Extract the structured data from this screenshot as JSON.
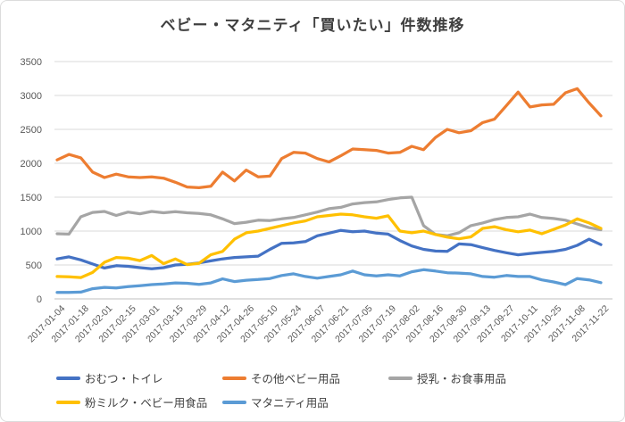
{
  "title": "ベビー・マタニティ「買いたい」件数推移",
  "colors": {
    "background": "#FFFFFF",
    "border": "#DCDCDC",
    "gridline": "#D9D9D9",
    "axis_line": "#BFBFBF",
    "tick_label": "#595959",
    "title_text": "#3F3F3F",
    "legend_text": "#404040"
  },
  "chart_data": {
    "type": "line",
    "title": "ベビー・マタニティ「買いたい」件数推移",
    "xlabel": "",
    "ylabel": "",
    "ylim": [
      0,
      3500
    ],
    "y_ticks": [
      0,
      500,
      1000,
      1500,
      2000,
      2500,
      3000,
      3500
    ],
    "grid": true,
    "legend_position": "bottom",
    "x_tick_every": 2,
    "x": [
      "2017-01-04",
      "2017-01-11",
      "2017-01-18",
      "2017-01-25",
      "2017-02-01",
      "2017-02-08",
      "2017-02-15",
      "2017-02-22",
      "2017-03-01",
      "2017-03-08",
      "2017-03-15",
      "2017-03-22",
      "2017-03-29",
      "2017-04-05",
      "2017-04-12",
      "2017-04-19",
      "2017-04-26",
      "2017-05-03",
      "2017-05-10",
      "2017-05-17",
      "2017-05-24",
      "2017-05-31",
      "2017-06-07",
      "2017-06-14",
      "2017-06-21",
      "2017-06-28",
      "2017-07-05",
      "2017-07-12",
      "2017-07-19",
      "2017-07-26",
      "2017-08-02",
      "2017-08-09",
      "2017-08-16",
      "2017-08-23",
      "2017-08-30",
      "2017-09-06",
      "2017-09-13",
      "2017-09-20",
      "2017-09-27",
      "2017-10-04",
      "2017-10-11",
      "2017-10-18",
      "2017-10-25",
      "2017-11-01",
      "2017-11-08",
      "2017-11-15",
      "2017-11-22"
    ],
    "x_axis_tick_labels": [
      "2017-01-04",
      "2017-01-18",
      "2017-02-01",
      "2017-02-15",
      "2017-03-01",
      "2017-03-15",
      "2017-03-29",
      "2017-04-12",
      "2017-04-26",
      "2017-05-10",
      "2017-05-24",
      "2017-06-07",
      "2017-06-21",
      "2017-07-05",
      "2017-07-19",
      "2017-08-02",
      "2017-08-16",
      "2017-08-30",
      "2017-09-13",
      "2017-09-27",
      "2017-10-11",
      "2017-10-25",
      "2017-11-08",
      "2017-11-22"
    ],
    "series": [
      {
        "name": "おむつ・トイレ",
        "color": "#4472C4",
        "values": [
          590,
          620,
          575,
          515,
          455,
          490,
          480,
          460,
          445,
          460,
          500,
          510,
          530,
          560,
          590,
          610,
          620,
          630,
          730,
          820,
          825,
          845,
          930,
          970,
          1010,
          990,
          1000,
          970,
          955,
          860,
          780,
          730,
          705,
          700,
          810,
          800,
          755,
          715,
          680,
          650,
          670,
          685,
          700,
          730,
          790,
          880,
          800
        ]
      },
      {
        "name": "その他ベビー用品",
        "color": "#ED7D31",
        "values": [
          2050,
          2130,
          2080,
          1870,
          1790,
          1840,
          1800,
          1790,
          1800,
          1780,
          1720,
          1650,
          1640,
          1660,
          1870,
          1740,
          1900,
          1800,
          1810,
          2070,
          2160,
          2150,
          2070,
          2020,
          2110,
          2210,
          2200,
          2190,
          2150,
          2160,
          2250,
          2200,
          2380,
          2500,
          2450,
          2480,
          2600,
          2650,
          2850,
          3050,
          2830,
          2860,
          2870,
          3040,
          3100,
          2890,
          2700
        ]
      },
      {
        "name": "授乳・お食事用品",
        "color": "#A5A5A5",
        "values": [
          960,
          955,
          1210,
          1275,
          1290,
          1230,
          1280,
          1255,
          1290,
          1270,
          1285,
          1270,
          1260,
          1240,
          1180,
          1110,
          1130,
          1160,
          1155,
          1180,
          1200,
          1240,
          1280,
          1330,
          1350,
          1400,
          1420,
          1430,
          1465,
          1490,
          1500,
          1080,
          950,
          930,
          975,
          1080,
          1120,
          1170,
          1200,
          1210,
          1250,
          1200,
          1185,
          1160,
          1105,
          1050,
          1020
        ]
      },
      {
        "name": "粉ミルク・ベビー用食品",
        "color": "#FFC000",
        "values": [
          330,
          325,
          315,
          390,
          540,
          610,
          600,
          565,
          640,
          520,
          590,
          505,
          525,
          650,
          700,
          880,
          975,
          1000,
          1040,
          1080,
          1120,
          1150,
          1210,
          1230,
          1250,
          1240,
          1210,
          1190,
          1225,
          1000,
          975,
          1000,
          950,
          910,
          885,
          915,
          1040,
          1065,
          1020,
          990,
          1015,
          960,
          1025,
          1090,
          1180,
          1120,
          1040
        ]
      },
      {
        "name": "マタニティ用品",
        "color": "#5B9BD5",
        "values": [
          95,
          95,
          100,
          150,
          170,
          160,
          180,
          195,
          210,
          220,
          235,
          230,
          215,
          235,
          295,
          255,
          275,
          285,
          300,
          345,
          370,
          330,
          305,
          330,
          355,
          410,
          355,
          340,
          355,
          340,
          400,
          430,
          410,
          385,
          380,
          370,
          330,
          320,
          345,
          330,
          330,
          280,
          250,
          210,
          300,
          280,
          240
        ]
      }
    ]
  }
}
